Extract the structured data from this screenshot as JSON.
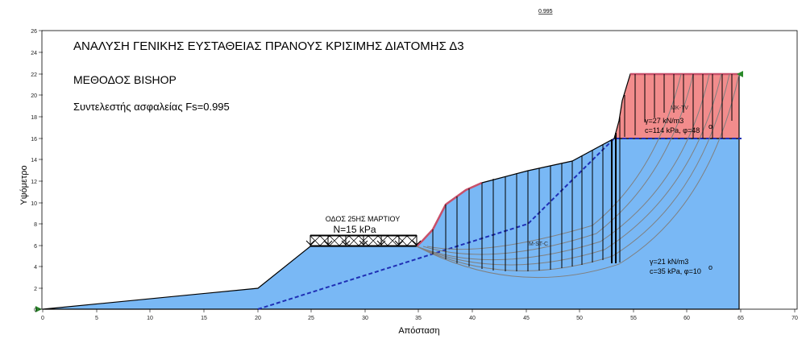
{
  "top_value": "0.995",
  "title": "ΑΝΑΛΥΣΗ ΓΕΝΙΚΗΣ ΕΥΣΤΑΘΕΙΑΣ ΠΡΑΝΟΥΣ ΚΡΙΣΙΜΗΣ ΔΙΑΤΟΜΗΣ Δ3",
  "method": "ΜΕΘΟΔΟΣ BISHOP",
  "factor_label": "Συντελεστής ασφαλείας Fs=0.995",
  "x_axis_label": "Απόσταση",
  "y_axis_label": "Υψόμετρο",
  "x_ticks": [
    "0",
    "5",
    "10",
    "15",
    "20",
    "25",
    "30",
    "35",
    "40",
    "45",
    "50",
    "55",
    "60",
    "65",
    "70"
  ],
  "y_ticks": [
    "0",
    "2",
    "4",
    "6",
    "8",
    "10",
    "12",
    "14",
    "16",
    "18",
    "20",
    "22",
    "24",
    "26"
  ],
  "road_label": "ΟΔΟΣ 25ΗΣ ΜΑΡΤΙΟΥ",
  "load_label": "N=15 kPa",
  "upper_material": {
    "name": "MK-TV",
    "gamma": "γ=27 kN/m3",
    "strength": "c=114 kPa, φ=48",
    "degree": "o"
  },
  "lower_material": {
    "name": "M-ST-C",
    "gamma": "γ=21 kN/m3",
    "strength": "c=35 kPa, φ=10",
    "degree": "o"
  },
  "colors": {
    "lower_fill": "#79b8f5",
    "upper_fill": "#f28c8c",
    "surface_red": "#c8506a",
    "phreatic_blue": "#1f2fb5",
    "slip_gray": "#808080"
  },
  "icons": [
    "triangle-marker-icon"
  ]
}
